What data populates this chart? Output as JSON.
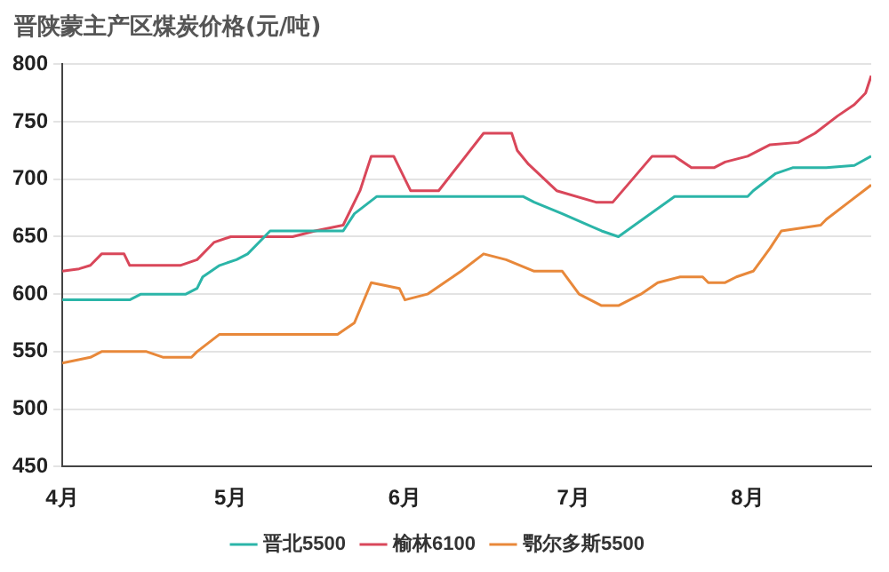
{
  "chart_data": {
    "type": "line",
    "title": "晋陕蒙主产区煤炭价格(元/吨)",
    "xlim": [
      "--04-01",
      "--08-23"
    ],
    "xticks": [
      {
        "value": "--04-01",
        "label": "4月"
      },
      {
        "value": "--05-01",
        "label": "5月"
      },
      {
        "value": "--06-01",
        "label": "6月"
      },
      {
        "value": "--07-01",
        "label": "7月"
      },
      {
        "value": "--08-01",
        "label": "8月"
      }
    ],
    "ylim": [
      450,
      800
    ],
    "yticks": [
      450,
      500,
      550,
      600,
      650,
      700,
      750,
      800
    ],
    "grid": "y",
    "legend": "bottom",
    "marker": "none",
    "line_style": "solid",
    "series": [
      {
        "name": "晋北5500",
        "color": "#2bb5a8",
        "x": [
          "--04-01",
          "--04-13",
          "--04-15",
          "--04-23",
          "--04-25",
          "--04-26",
          "--04-29",
          "--05-02",
          "--05-04",
          "--05-07",
          "--05-08",
          "--05-21",
          "--05-23",
          "--05-27",
          "--06-22",
          "--06-24",
          "--06-29",
          "--07-06",
          "--07-09",
          "--07-19",
          "--08-01",
          "--08-02",
          "--08-06",
          "--08-09",
          "--08-15",
          "--08-20",
          "--08-23"
        ],
        "values": [
          595,
          595,
          600,
          600,
          605,
          615,
          625,
          630,
          635,
          650,
          655,
          655,
          670,
          685,
          685,
          680,
          670,
          655,
          650,
          685,
          685,
          690,
          705,
          710,
          710,
          712,
          720
        ]
      },
      {
        "name": "榆林6100",
        "color": "#d9475a",
        "x": [
          "--04-01",
          "--04-04",
          "--04-06",
          "--04-08",
          "--04-12",
          "--04-13",
          "--04-22",
          "--04-25",
          "--04-28",
          "--05-01",
          "--05-12",
          "--05-16",
          "--05-21",
          "--05-24",
          "--05-26",
          "--05-30",
          "--06-02",
          "--06-07",
          "--06-11",
          "--06-15",
          "--06-20",
          "--06-21",
          "--06-23",
          "--06-28",
          "--07-05",
          "--07-08",
          "--07-15",
          "--07-19",
          "--07-22",
          "--07-26",
          "--07-28",
          "--08-01",
          "--08-05",
          "--08-10",
          "--08-13",
          "--08-17",
          "--08-20",
          "--08-22",
          "--08-23"
        ],
        "values": [
          620,
          622,
          625,
          635,
          635,
          625,
          625,
          630,
          645,
          650,
          650,
          655,
          660,
          690,
          720,
          720,
          690,
          690,
          715,
          740,
          740,
          725,
          713,
          690,
          680,
          680,
          720,
          720,
          710,
          710,
          715,
          720,
          730,
          732,
          740,
          755,
          765,
          775,
          790
        ]
      },
      {
        "name": "鄂尔多斯5500",
        "color": "#e8883a",
        "x": [
          "--04-01",
          "--04-06",
          "--04-08",
          "--04-16",
          "--04-19",
          "--04-24",
          "--04-25",
          "--04-29",
          "--05-20",
          "--05-23",
          "--05-26",
          "--05-31",
          "--06-01",
          "--06-05",
          "--06-08",
          "--06-11",
          "--06-15",
          "--06-19",
          "--06-24",
          "--06-29",
          "--07-02",
          "--07-06",
          "--07-09",
          "--07-13",
          "--07-16",
          "--07-20",
          "--07-24",
          "--07-25",
          "--07-28",
          "--07-30",
          "--08-02",
          "--08-05",
          "--08-07",
          "--08-14",
          "--08-15",
          "--08-19",
          "--08-23"
        ],
        "values": [
          540,
          545,
          550,
          550,
          545,
          545,
          550,
          565,
          565,
          575,
          610,
          605,
          595,
          600,
          610,
          620,
          635,
          630,
          620,
          620,
          600,
          590,
          590,
          600,
          610,
          615,
          615,
          610,
          610,
          615,
          620,
          640,
          655,
          660,
          665,
          680,
          695
        ]
      }
    ]
  }
}
